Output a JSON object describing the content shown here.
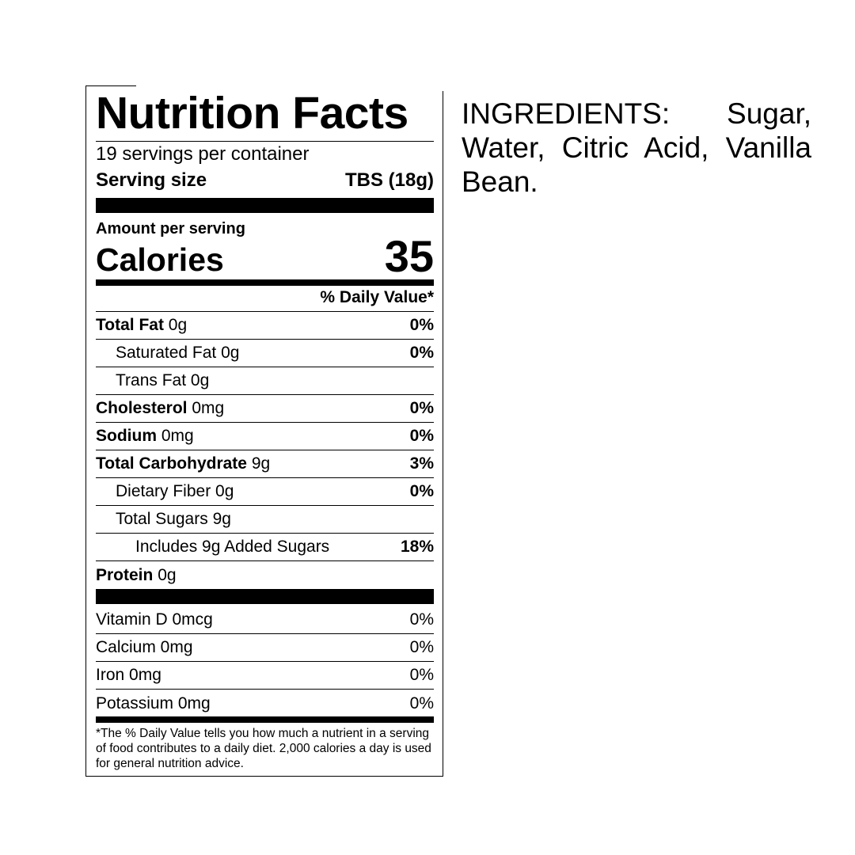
{
  "label": {
    "title": "Nutrition Facts",
    "servings": "19 servings per container",
    "serving_size_label": "Serving size",
    "serving_size_value": "TBS (18g)",
    "amount_per_serving": "Amount per serving",
    "calories_label": "Calories",
    "calories_value": "35",
    "daily_value_header": "% Daily Value*",
    "nutrients": [
      {
        "name": "Total Fat",
        "amount": "0g",
        "dv": "0%",
        "bold": true,
        "indent": 0
      },
      {
        "name": "Saturated Fat",
        "amount": "0g",
        "dv": "0%",
        "bold": false,
        "indent": 1
      },
      {
        "name": "Trans Fat",
        "amount": "0g",
        "dv": "",
        "bold": false,
        "indent": 1
      },
      {
        "name": "Cholesterol",
        "amount": "0mg",
        "dv": "0%",
        "bold": true,
        "indent": 0
      },
      {
        "name": "Sodium",
        "amount": "0mg",
        "dv": "0%",
        "bold": true,
        "indent": 0
      },
      {
        "name": "Total Carbohydrate",
        "amount": "9g",
        "dv": "3%",
        "bold": true,
        "indent": 0
      },
      {
        "name": "Dietary Fiber",
        "amount": "0g",
        "dv": "0%",
        "bold": false,
        "indent": 1
      },
      {
        "name": "Total Sugars",
        "amount": "9g",
        "dv": "",
        "bold": false,
        "indent": 1
      },
      {
        "name": "Includes 9g Added Sugars",
        "amount": "",
        "dv": "18%",
        "bold": false,
        "indent": 2
      },
      {
        "name": "Protein",
        "amount": "0g",
        "dv": "",
        "bold": true,
        "indent": 0
      }
    ],
    "vitamins": [
      {
        "name": "Vitamin D 0mcg",
        "dv": "0%"
      },
      {
        "name": "Calcium 0mg",
        "dv": "0%"
      },
      {
        "name": "Iron 0mg",
        "dv": "0%"
      },
      {
        "name": "Potassium 0mg",
        "dv": "0%"
      }
    ],
    "footnote": "*The % Daily Value tells you how much a nutrient in a serving of food contributes to a daily diet. 2,000 calories a day is used for general nutrition advice."
  },
  "ingredients": "INGREDIENTS: Sugar, Water, Citric Acid, Vanilla Bean."
}
